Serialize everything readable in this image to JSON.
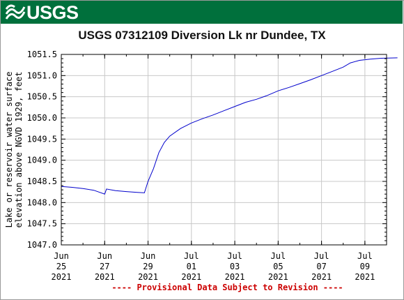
{
  "header": {
    "logo_text": "USGS",
    "logo_icon": "usgs-wave-logo-icon",
    "brand_color": "#00703c"
  },
  "chart_data": {
    "type": "line",
    "title": "USGS 07312109 Diversion Lk nr Dundee, TX",
    "ylabel_line1": "Lake or reservoir water surface",
    "ylabel_line2": "elevation above NGVD 1929, feet",
    "xlabel": "",
    "ylim": [
      1047.0,
      1051.5
    ],
    "yticks": [
      "1047.0",
      "1047.5",
      "1048.0",
      "1048.5",
      "1049.0",
      "1049.5",
      "1050.0",
      "1050.5",
      "1051.0",
      "1051.5"
    ],
    "xlim": [
      "2021-06-25",
      "2021-07-10"
    ],
    "xticks": [
      {
        "date": "2021-06-25",
        "line1": "Jun",
        "line2": "25",
        "line3": "2021"
      },
      {
        "date": "2021-06-27",
        "line1": "Jun",
        "line2": "27",
        "line3": "2021"
      },
      {
        "date": "2021-06-29",
        "line1": "Jun",
        "line2": "29",
        "line3": "2021"
      },
      {
        "date": "2021-07-01",
        "line1": "Jul",
        "line2": "01",
        "line3": "2021"
      },
      {
        "date": "2021-07-03",
        "line1": "Jul",
        "line2": "03",
        "line3": "2021"
      },
      {
        "date": "2021-07-05",
        "line1": "Jul",
        "line2": "05",
        "line3": "2021"
      },
      {
        "date": "2021-07-07",
        "line1": "Jul",
        "line2": "07",
        "line3": "2021"
      },
      {
        "date": "2021-07-09",
        "line1": "Jul",
        "line2": "09",
        "line3": "2021"
      }
    ],
    "grid": true,
    "series": [
      {
        "color": "#0000cc",
        "points": [
          [
            "2021-06-25T00:00",
            1048.38
          ],
          [
            "2021-06-25T12:00",
            1048.36
          ],
          [
            "2021-06-26T00:00",
            1048.33
          ],
          [
            "2021-06-26T12:00",
            1048.29
          ],
          [
            "2021-06-27T00:00",
            1048.2
          ],
          [
            "2021-06-27T02:00",
            1048.32
          ],
          [
            "2021-06-27T12:00",
            1048.28
          ],
          [
            "2021-06-28T00:00",
            1048.26
          ],
          [
            "2021-06-28T12:00",
            1048.24
          ],
          [
            "2021-06-28T20:00",
            1048.23
          ],
          [
            "2021-06-29T00:00",
            1048.5
          ],
          [
            "2021-06-29T06:00",
            1048.8
          ],
          [
            "2021-06-29T12:00",
            1049.18
          ],
          [
            "2021-06-29T18:00",
            1049.42
          ],
          [
            "2021-06-30T00:00",
            1049.57
          ],
          [
            "2021-06-30T12:00",
            1049.75
          ],
          [
            "2021-07-01T00:00",
            1049.88
          ],
          [
            "2021-07-01T12:00",
            1049.98
          ],
          [
            "2021-07-02T00:00",
            1050.07
          ],
          [
            "2021-07-02T12:00",
            1050.17
          ],
          [
            "2021-07-03T00:00",
            1050.27
          ],
          [
            "2021-07-03T12:00",
            1050.37
          ],
          [
            "2021-07-04T00:00",
            1050.44
          ],
          [
            "2021-07-04T12:00",
            1050.53
          ],
          [
            "2021-07-05T00:00",
            1050.64
          ],
          [
            "2021-07-05T12:00",
            1050.72
          ],
          [
            "2021-07-06T00:00",
            1050.81
          ],
          [
            "2021-07-06T12:00",
            1050.9
          ],
          [
            "2021-07-07T00:00",
            1051.0
          ],
          [
            "2021-07-07T12:00",
            1051.1
          ],
          [
            "2021-07-08T00:00",
            1051.2
          ],
          [
            "2021-07-08T08:00",
            1051.3
          ],
          [
            "2021-07-08T18:00",
            1051.36
          ],
          [
            "2021-07-09T06:00",
            1051.39
          ],
          [
            "2021-07-09T18:00",
            1051.41
          ],
          [
            "2021-07-10T12:00",
            1051.42
          ]
        ]
      }
    ],
    "footnote": "---- Provisional Data Subject to Revision ----",
    "footnote_color": "#cc0000"
  }
}
